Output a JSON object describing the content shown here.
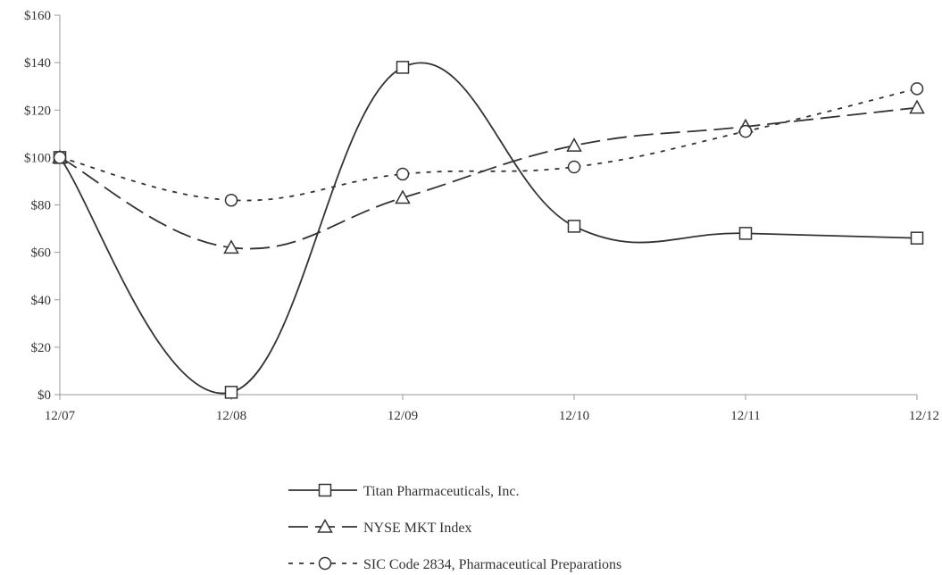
{
  "chart_data": {
    "type": "line",
    "title": "",
    "xlabel": "",
    "ylabel": "",
    "categories": [
      "12/07",
      "12/08",
      "12/09",
      "12/10",
      "12/11",
      "12/12"
    ],
    "ylim": [
      0,
      160
    ],
    "yticks": [
      0,
      20,
      40,
      60,
      80,
      100,
      120,
      140,
      160
    ],
    "ytick_labels": [
      "$0",
      "$20",
      "$40",
      "$60",
      "$80",
      "$100",
      "$120",
      "$140",
      "$160"
    ],
    "grid": false,
    "legend_position": "bottom-center",
    "series": [
      {
        "name": "Titan Pharmaceuticals, Inc.",
        "values": [
          100,
          1,
          138,
          71,
          68,
          66
        ],
        "line_style": "solid",
        "marker": "square",
        "color": "#333333"
      },
      {
        "name": "NYSE MKT Index",
        "values": [
          100,
          62,
          83,
          105,
          113,
          121
        ],
        "line_style": "dashed",
        "marker": "triangle",
        "color": "#333333"
      },
      {
        "name": "SIC Code 2834, Pharmaceutical Preparations",
        "values": [
          100,
          82,
          93,
          96,
          111,
          129
        ],
        "line_style": "dotted",
        "marker": "circle",
        "color": "#333333"
      }
    ]
  }
}
